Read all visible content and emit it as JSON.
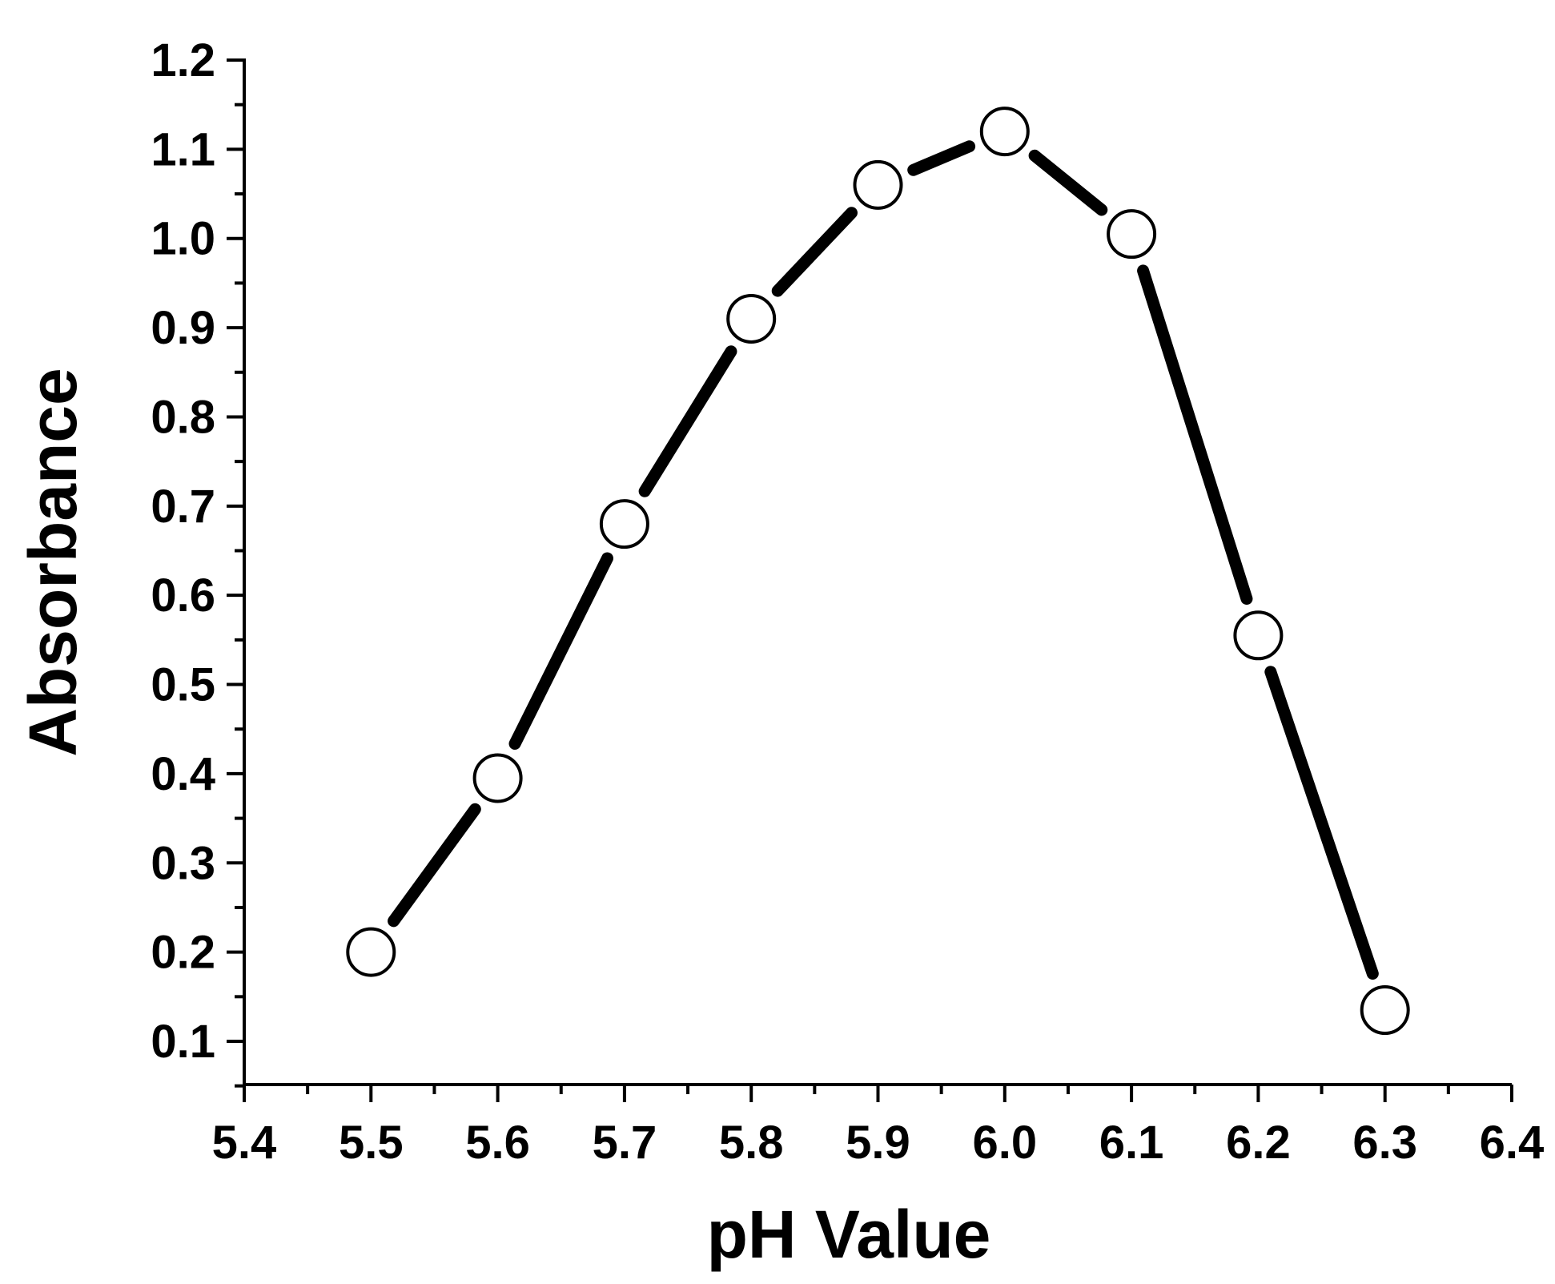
{
  "chart_data": {
    "type": "line",
    "xlabel": "pH Value",
    "ylabel": "Absorbance",
    "xlim": [
      5.4,
      6.4
    ],
    "ylim": [
      0.05,
      1.2
    ],
    "x_ticks": [
      "5.4",
      "5.5",
      "5.6",
      "5.7",
      "5.8",
      "5.9",
      "6.0",
      "6.1",
      "6.2",
      "6.3",
      "6.4"
    ],
    "y_ticks": [
      "0.1",
      "0.2",
      "0.3",
      "0.4",
      "0.5",
      "0.6",
      "0.7",
      "0.8",
      "0.9",
      "1.0",
      "1.1",
      "1.2"
    ],
    "series": [
      {
        "x": [
          5.5,
          5.6,
          5.7,
          5.8,
          5.9,
          6.0,
          6.1,
          6.2,
          6.3
        ],
        "y": [
          0.2,
          0.395,
          0.68,
          0.91,
          1.06,
          1.12,
          1.005,
          0.555,
          0.135
        ],
        "marker": "open-circle",
        "line_color": "#000000"
      }
    ],
    "grid": false,
    "legend": "none"
  }
}
